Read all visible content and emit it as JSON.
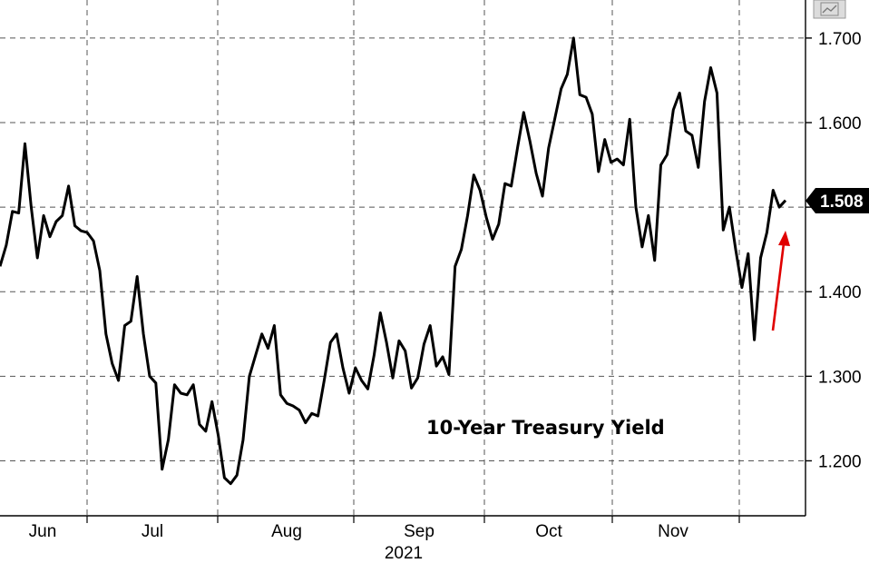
{
  "chart_data": {
    "type": "line",
    "title": "",
    "xlabel": "",
    "ylabel": "",
    "year_label": "2021",
    "annotation": "10-Year Treasury Yield",
    "last_value_label": "1.508",
    "x_tick_labels": [
      "Jun",
      "Jul",
      "Aug",
      "Sep",
      "Oct",
      "Nov"
    ],
    "y_tick_labels": [
      "1.700",
      "1.600",
      "1.400",
      "1.300",
      "1.200"
    ],
    "y_ticks": [
      1.7,
      1.6,
      1.5,
      1.4,
      1.3,
      1.2
    ],
    "ylim": [
      1.135,
      1.745
    ],
    "grid": true,
    "line_color": "#000000",
    "arrow_color": "#e00000",
    "series": [
      {
        "values": [
          1.43,
          1.455,
          1.495,
          1.493,
          1.575,
          1.5,
          1.44,
          1.49,
          1.465,
          1.483,
          1.49,
          1.525,
          1.478,
          1.472,
          1.47,
          1.46,
          1.425,
          1.35,
          1.315,
          1.295,
          1.36,
          1.365,
          1.418,
          1.35,
          1.3,
          1.292,
          1.19,
          1.225,
          1.29,
          1.28,
          1.278,
          1.29,
          1.243,
          1.235,
          1.27,
          1.23,
          1.18,
          1.173,
          1.183,
          1.225,
          1.3,
          1.325,
          1.35,
          1.333,
          1.36,
          1.278,
          1.268,
          1.265,
          1.26,
          1.245,
          1.256,
          1.253,
          1.295,
          1.34,
          1.35,
          1.31,
          1.28,
          1.31,
          1.295,
          1.285,
          1.325,
          1.375,
          1.34,
          1.298,
          1.342,
          1.33,
          1.286,
          1.298,
          1.338,
          1.36,
          1.312,
          1.323,
          1.302,
          1.43,
          1.45,
          1.49,
          1.538,
          1.52,
          1.488,
          1.462,
          1.48,
          1.528,
          1.525,
          1.57,
          1.612,
          1.578,
          1.54,
          1.513,
          1.57,
          1.605,
          1.64,
          1.657,
          1.7,
          1.633,
          1.63,
          1.61,
          1.542,
          1.58,
          1.553,
          1.557,
          1.55,
          1.604,
          1.5,
          1.453,
          1.49,
          1.437,
          1.55,
          1.562,
          1.615,
          1.635,
          1.59,
          1.585,
          1.547,
          1.625,
          1.665,
          1.635,
          1.473,
          1.5,
          1.45,
          1.405,
          1.445,
          1.343,
          1.44,
          1.47,
          1.52,
          1.5,
          1.508
        ]
      }
    ]
  }
}
